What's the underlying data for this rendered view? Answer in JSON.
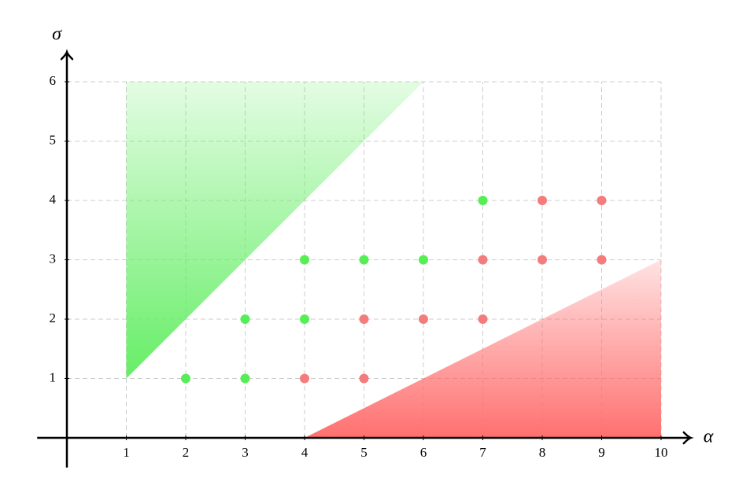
{
  "chart_data": {
    "type": "scatter",
    "x_label": "α",
    "y_label": "σ",
    "xlim": [
      -0.5,
      10.5
    ],
    "ylim": [
      -0.5,
      6.5
    ],
    "xticks": [
      1,
      2,
      3,
      4,
      5,
      6,
      7,
      8,
      9,
      10
    ],
    "yticks": [
      1,
      2,
      3,
      4,
      5,
      6
    ],
    "grid": true,
    "regions": [
      {
        "color": "#66ee66",
        "x": [
          1,
          1,
          6
        ],
        "y": [
          1,
          6,
          6
        ]
      },
      {
        "color": "#ff7070",
        "x": [
          4,
          10,
          10
        ],
        "y": [
          0,
          0,
          3
        ]
      }
    ],
    "series": [
      {
        "color": "#55ee55",
        "x": [
          2,
          3,
          3,
          4,
          4,
          5,
          6,
          7
        ],
        "values": [
          1,
          1,
          2,
          2,
          3,
          3,
          3,
          4
        ]
      },
      {
        "color": "#f47c7c",
        "x": [
          4,
          5,
          5,
          6,
          7,
          7,
          8,
          9,
          8,
          9
        ],
        "values": [
          1,
          1,
          2,
          2,
          2,
          3,
          3,
          3,
          4,
          4
        ]
      }
    ]
  }
}
